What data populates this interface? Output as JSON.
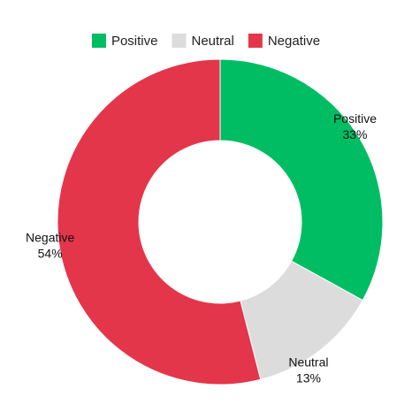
{
  "chart_data": {
    "type": "pie",
    "variant": "donut",
    "legend_position": "top",
    "categories": [
      "Positive",
      "Neutral",
      "Negative"
    ],
    "values": [
      33,
      13,
      54
    ],
    "value_labels": [
      "33%",
      "13%",
      "54%"
    ],
    "colors": [
      "#00bd63",
      "#dcdcdc",
      "#e3364a"
    ],
    "title": ""
  }
}
